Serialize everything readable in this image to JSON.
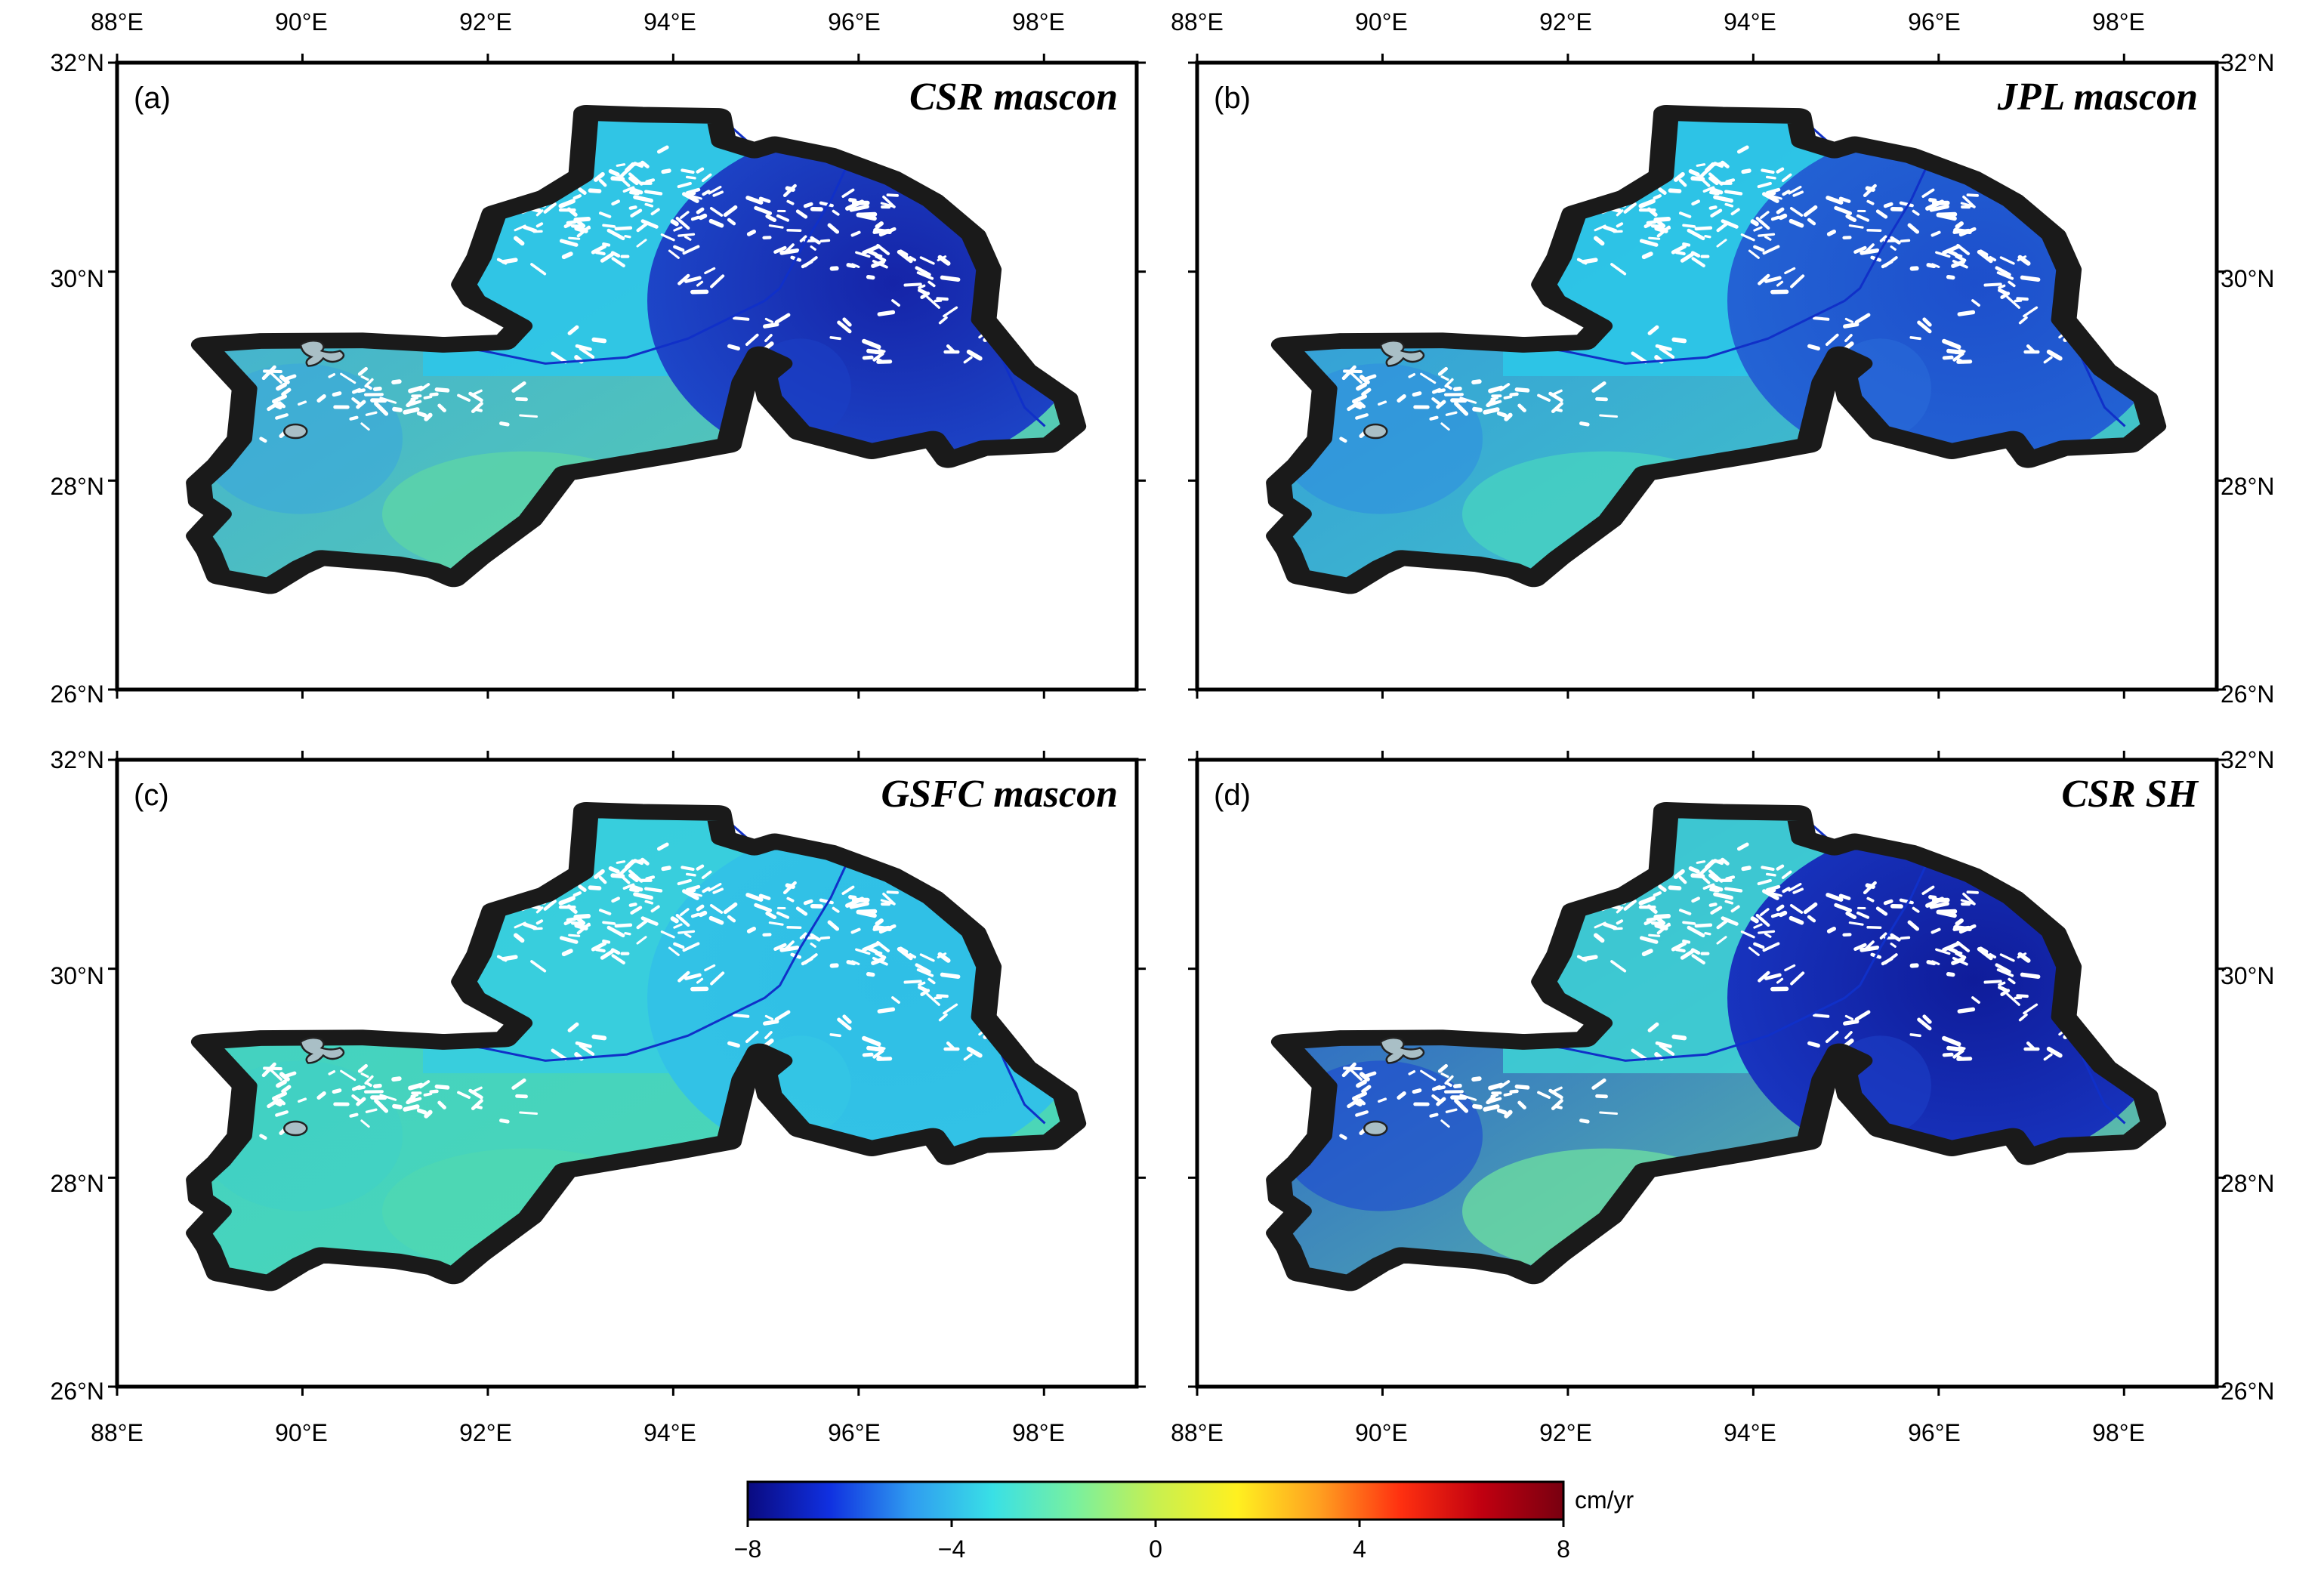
{
  "figure": {
    "type": "map-panels",
    "extent": {
      "lon_min": 88,
      "lon_max": 99,
      "lat_min": 26,
      "lat_max": 32
    },
    "lon_ticks": [
      88,
      90,
      92,
      94,
      96,
      98
    ],
    "lat_ticks": [
      26,
      28,
      30,
      32
    ],
    "lon_tick_labels": [
      "88°E",
      "90°E",
      "92°E",
      "94°E",
      "96°E",
      "98°E"
    ],
    "lat_tick_labels": [
      "26°N",
      "28°N",
      "30°N",
      "32°N"
    ]
  },
  "panels": [
    {
      "label": "(a)",
      "title": "CSR mascon",
      "colors": {
        "west": "#3ba7dc",
        "south": "#5ed6a6",
        "north": "#2ec7e8",
        "east": "#1f4ed0",
        "east_core": "#1524a8",
        "east_alt": "#1a3fc4"
      }
    },
    {
      "label": "(b)",
      "title": "JPL mascon",
      "colors": {
        "west": "#2e8ee0",
        "south": "#48d4c0",
        "north": "#2cc6e8",
        "east": "#2568d6",
        "east_core": "#1d4fcc",
        "east_alt": "#2a6ad8"
      }
    },
    {
      "label": "(c)",
      "title": "GSFC mascon",
      "colors": {
        "west": "#3fd0c6",
        "south": "#4fd8b2",
        "north": "#36cde0",
        "east": "#33c3e6",
        "east_core": "#2fbfe6",
        "east_alt": "#36c8e4"
      }
    },
    {
      "label": "(d)",
      "title": "CSR SH",
      "colors": {
        "west": "#1a46d0",
        "south": "#6ee0a0",
        "north": "#3ecfd4",
        "east": "#1a3ac8",
        "east_core": "#0f1c9a",
        "east_alt": "#1c40c6"
      }
    }
  ],
  "colorbar": {
    "unit": "cm/yr",
    "min": -8,
    "max": 8,
    "ticks": [
      -8,
      -4,
      0,
      4,
      8
    ],
    "tick_labels": [
      "−8",
      "−4",
      "0",
      "4",
      "8"
    ],
    "stops": [
      "#0a0a80",
      "#1030e0",
      "#2f9cf0",
      "#39e0e6",
      "#78f0a0",
      "#c8f050",
      "#fff020",
      "#ffa020",
      "#ff3010",
      "#c00010",
      "#780010"
    ]
  }
}
